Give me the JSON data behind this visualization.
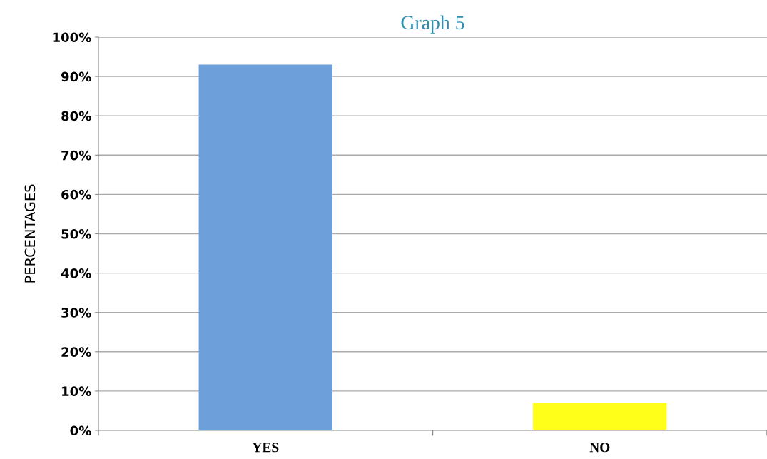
{
  "chart_data": {
    "type": "bar",
    "title": "Graph 5",
    "ylabel": "PERCENTAGES",
    "categories": [
      "YES",
      "NO"
    ],
    "values": [
      93,
      7
    ],
    "colors": [
      "#6d9fdb",
      "#ffff1a"
    ],
    "ylim": [
      0,
      100
    ],
    "yticks": [
      {
        "value": 0,
        "label": "0%"
      },
      {
        "value": 10,
        "label": "10%"
      },
      {
        "value": 20,
        "label": "20%"
      },
      {
        "value": 30,
        "label": "30%"
      },
      {
        "value": 40,
        "label": "40%"
      },
      {
        "value": 50,
        "label": "50%"
      },
      {
        "value": 60,
        "label": "60%"
      },
      {
        "value": 70,
        "label": "70%"
      },
      {
        "value": 80,
        "label": "80%"
      },
      {
        "value": 90,
        "label": "90%"
      },
      {
        "value": 100,
        "label": "100%"
      }
    ],
    "grid": "y"
  }
}
